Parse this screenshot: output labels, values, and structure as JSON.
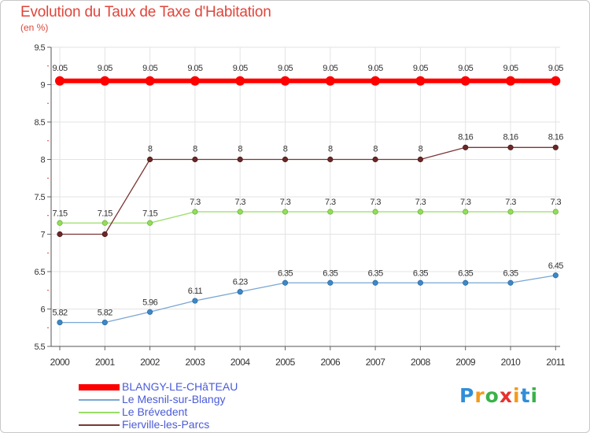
{
  "chart_data": {
    "type": "line",
    "title": "Evolution du Taux de Taxe d'Habitation",
    "subtitle": "(en %)",
    "xlabel": "",
    "ylabel": "",
    "x": [
      "2000",
      "2001",
      "2002",
      "2003",
      "2004",
      "2005",
      "2006",
      "2007",
      "2008",
      "2009",
      "2010",
      "2011"
    ],
    "ylim": [
      5.5,
      9.5
    ],
    "yticks": [
      5.5,
      6,
      6.5,
      7,
      7.5,
      8,
      8.5,
      9,
      9.5
    ],
    "ytick_labels": [
      "5.5",
      "6",
      "6.5",
      "7",
      "7.5",
      "8",
      "8.5",
      "9",
      "9.5"
    ],
    "grid": true,
    "legend_position": "bottom-left",
    "series": [
      {
        "name": "BLANGY-LE-CHâTEAU",
        "color": "#ff0000",
        "values": [
          9.05,
          9.05,
          9.05,
          9.05,
          9.05,
          9.05,
          9.05,
          9.05,
          9.05,
          9.05,
          9.05,
          9.05
        ],
        "labels": [
          "9.05",
          "9.05",
          "9.05",
          "9.05",
          "9.05",
          "9.05",
          "9.05",
          "9.05",
          "9.05",
          "9.05",
          "9.05",
          "9.05"
        ]
      },
      {
        "name": "Le Mesnil-sur-Blangy",
        "color": "#7aa6d2",
        "values": [
          5.82,
          5.82,
          5.96,
          6.11,
          6.23,
          6.35,
          6.35,
          6.35,
          6.35,
          6.35,
          6.35,
          6.45
        ],
        "labels": [
          "5.82",
          "5.82",
          "5.96",
          "6.11",
          "6.23",
          "6.35",
          "6.35",
          "6.35",
          "6.35",
          "6.35",
          "6.35",
          "6.45"
        ]
      },
      {
        "name": "Le Brévedent",
        "color": "#99dd66",
        "values": [
          7.15,
          7.15,
          7.15,
          7.3,
          7.3,
          7.3,
          7.3,
          7.3,
          7.3,
          7.3,
          7.3,
          7.3
        ],
        "labels": [
          "7.15",
          "7.15",
          "7.15",
          "7.3",
          "7.3",
          "7.3",
          "7.3",
          "7.3",
          "7.3",
          "7.3",
          "7.3",
          "7.3"
        ]
      },
      {
        "name": "Fierville-les-Parcs",
        "color": "#7b3636",
        "values": [
          7,
          7,
          8,
          8,
          8,
          8,
          8,
          8,
          8,
          8.16,
          8.16,
          8.16
        ],
        "labels": [
          "",
          "",
          "8",
          "8",
          "8",
          "8",
          "8",
          "8",
          "8",
          "8.16",
          "8.16",
          "8.16"
        ]
      }
    ]
  },
  "logo": {
    "text": "Proxiti",
    "letters": [
      "P",
      "r",
      "o",
      "x",
      "i",
      "t",
      "i"
    ],
    "letter_colors": [
      "#2f8ed8",
      "#f39a1c",
      "#39b24a",
      "#e8312c",
      "#f39a1c",
      "#2f8ed8",
      "#39b24a"
    ]
  }
}
